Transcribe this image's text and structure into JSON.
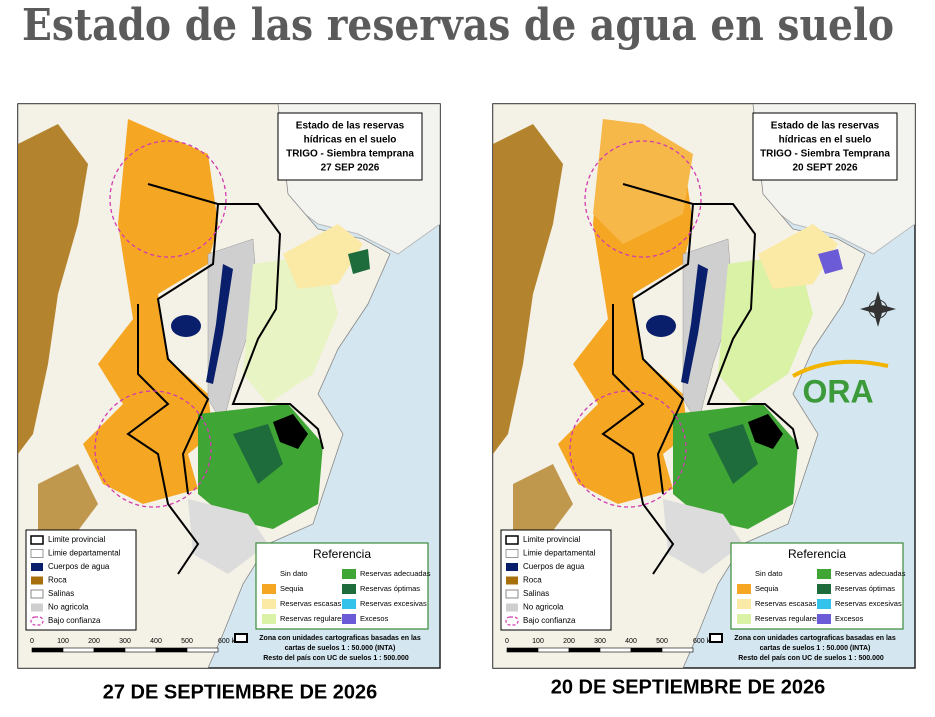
{
  "header": {
    "title": "Estado de las reservas de agua en suelo"
  },
  "maps": [
    {
      "caption": "27 DE SEPTIEMBRE DE 2026",
      "map_title": [
        "Estado de las reservas",
        "hídricas en el suelo",
        "TRIGO - Siembra temprana",
        "27 SEP 2026"
      ],
      "legend_left": [
        "Limite provincial",
        "Limie departamental",
        "Cuerpos de agua",
        "Roca",
        "Salinas",
        "No agricola",
        "Bajo confianza"
      ],
      "reference": {
        "title": "Referencia",
        "items": [
          {
            "label": "Sin dato",
            "color": "#ffffff"
          },
          {
            "label": "Sequia",
            "color": "#f5a623"
          },
          {
            "label": "Reservas escasas",
            "color": "#fbe9a6"
          },
          {
            "label": "Reservas regulares",
            "color": "#d9f2a6"
          },
          {
            "label": "Reservas adecuadas",
            "color": "#3fa535"
          },
          {
            "label": "Reservas óptimas",
            "color": "#1e6b3c"
          },
          {
            "label": "Reservas excesivas",
            "color": "#33c3ea"
          },
          {
            "label": "Excesos",
            "color": "#6b5bd6"
          }
        ]
      },
      "scale_labels": [
        "0",
        "100",
        "200",
        "300",
        "400",
        "500",
        "600 km"
      ],
      "note": [
        "Zona con unidades cartograficas basadas en las",
        "cartas de suelos 1 : 50.000 (INTA)",
        "Resto del país con UC de suelos 1 : 500.000"
      ]
    },
    {
      "caption": "20 DE SEPTIEMBRE DE 2026",
      "map_title": [
        "Estado de las reservas",
        "hídricas en el suelo",
        "TRIGO - Siembra Temprana",
        "20 SEPT 2026"
      ],
      "legend_left": [
        "Limite provincial",
        "Limie departamental",
        "Cuerpos de agua",
        "Roca",
        "Salinas",
        "No agricola",
        "Bajo confianza"
      ],
      "reference": {
        "title": "Referencia",
        "items": [
          {
            "label": "Sin dato",
            "color": "#ffffff"
          },
          {
            "label": "Sequia",
            "color": "#f5a623"
          },
          {
            "label": "Reservas escasas",
            "color": "#fbe9a6"
          },
          {
            "label": "Reservas regulares",
            "color": "#d9f2a6"
          },
          {
            "label": "Reservas adecuadas",
            "color": "#3fa535"
          },
          {
            "label": "Reservas óptimas",
            "color": "#1e6b3c"
          },
          {
            "label": "Reservas excesivas",
            "color": "#33c3ea"
          },
          {
            "label": "Excesos",
            "color": "#6b5bd6"
          }
        ]
      },
      "scale_labels": [
        "0",
        "100",
        "200",
        "300",
        "400",
        "500",
        "600 km"
      ],
      "note": [
        "Zona con unidades cartograficas basadas en las",
        "cartas de suelos 1 : 50.000 (INTA)",
        "Resto del país con UC de suelos 1 : 500.000"
      ],
      "logo": "ORA"
    }
  ]
}
